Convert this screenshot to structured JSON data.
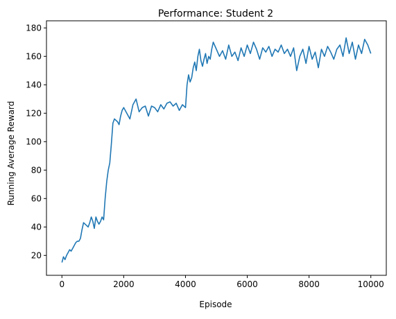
{
  "chart_data": {
    "type": "line",
    "title": "Performance: Student 2",
    "xlabel": "Episode",
    "ylabel": "Running Average Reward",
    "xlim": [
      -500,
      10500
    ],
    "ylim": [
      6,
      185
    ],
    "x_ticks": [
      0,
      2000,
      4000,
      6000,
      8000,
      10000
    ],
    "y_ticks": [
      20,
      40,
      60,
      80,
      100,
      120,
      140,
      160,
      180
    ],
    "grid": false,
    "legend": "none",
    "series": [
      {
        "color": "#1f77b4",
        "x": [
          0,
          50,
          100,
          150,
          200,
          250,
          300,
          350,
          400,
          450,
          500,
          550,
          600,
          650,
          700,
          750,
          800,
          850,
          900,
          950,
          1000,
          1050,
          1100,
          1150,
          1200,
          1250,
          1300,
          1350,
          1400,
          1450,
          1500,
          1550,
          1600,
          1650,
          1700,
          1750,
          1800,
          1850,
          1900,
          1950,
          2000,
          2100,
          2200,
          2300,
          2400,
          2500,
          2600,
          2700,
          2800,
          2900,
          3000,
          3100,
          3200,
          3300,
          3400,
          3500,
          3600,
          3700,
          3800,
          3900,
          4000,
          4050,
          4100,
          4150,
          4200,
          4250,
          4300,
          4350,
          4400,
          4450,
          4500,
          4550,
          4600,
          4650,
          4700,
          4750,
          4800,
          4850,
          4900,
          5000,
          5100,
          5200,
          5300,
          5400,
          5500,
          5600,
          5700,
          5800,
          5900,
          6000,
          6100,
          6200,
          6300,
          6400,
          6500,
          6600,
          6700,
          6800,
          6900,
          7000,
          7100,
          7200,
          7300,
          7400,
          7500,
          7600,
          7700,
          7800,
          7900,
          8000,
          8100,
          8200,
          8300,
          8400,
          8500,
          8600,
          8700,
          8800,
          8900,
          9000,
          9100,
          9200,
          9300,
          9400,
          9500,
          9600,
          9700,
          9800,
          9900,
          10000
        ],
        "y": [
          15,
          19,
          17,
          20,
          22,
          24,
          23,
          25,
          27,
          29,
          30,
          30,
          32,
          38,
          43,
          42,
          41,
          40,
          43,
          47,
          44,
          39,
          47,
          44,
          42,
          44,
          47,
          45,
          60,
          72,
          80,
          85,
          98,
          113,
          116,
          115,
          114,
          112,
          118,
          122,
          124,
          120,
          116,
          126,
          130,
          121,
          124,
          125,
          118,
          125,
          124,
          121,
          126,
          123,
          127,
          128,
          125,
          127,
          122,
          126,
          124,
          140,
          147,
          142,
          145,
          152,
          156,
          150,
          160,
          165,
          157,
          153,
          158,
          162,
          155,
          160,
          158,
          165,
          170,
          165,
          160,
          164,
          158,
          168,
          160,
          163,
          157,
          166,
          160,
          168,
          162,
          170,
          165,
          158,
          166,
          163,
          167,
          160,
          165,
          163,
          168,
          162,
          165,
          160,
          166,
          150,
          160,
          165,
          155,
          167,
          158,
          163,
          152,
          165,
          160,
          167,
          163,
          158,
          165,
          168,
          160,
          173,
          162,
          170,
          158,
          168,
          162,
          172,
          168,
          162
        ]
      }
    ]
  }
}
